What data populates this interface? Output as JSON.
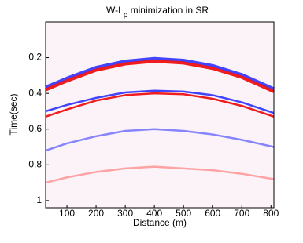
{
  "chart_data": {
    "type": "seismic",
    "title": [
      "W-L",
      "p",
      " minimization in SR"
    ],
    "x_label": "Distance (m)",
    "y_label": "Time(sec)",
    "xlim": [
      27,
      810
    ],
    "xticks": [
      100,
      200,
      300,
      400,
      500,
      600,
      700,
      800
    ],
    "ylim": [
      0,
      1.04
    ],
    "yticks": [
      0.2,
      0.4,
      0.6,
      0.8,
      1
    ],
    "y_reversed": true,
    "grid": false,
    "events": [
      {
        "color": "#3a3aff",
        "x": [
          27,
          100,
          200,
          300,
          400,
          500,
          600,
          700,
          810
        ],
        "values": [
          0.365,
          0.315,
          0.255,
          0.22,
          0.205,
          0.215,
          0.245,
          0.295,
          0.375
        ]
      },
      {
        "color": "#ee1111",
        "x": [
          27,
          100,
          200,
          300,
          400,
          500,
          600,
          700,
          810
        ],
        "values": [
          0.38,
          0.33,
          0.27,
          0.235,
          0.22,
          0.23,
          0.26,
          0.31,
          0.39
        ]
      },
      {
        "color": "#3a3aff",
        "x": [
          27,
          100,
          200,
          300,
          400,
          500,
          600,
          700,
          810
        ],
        "values": [
          0.5,
          0.465,
          0.425,
          0.395,
          0.385,
          0.39,
          0.41,
          0.45,
          0.51
        ]
      },
      {
        "color": "#ee1111",
        "x": [
          27,
          100,
          200,
          300,
          400,
          500,
          600,
          700,
          810
        ],
        "values": [
          0.53,
          0.49,
          0.44,
          0.41,
          0.4,
          0.405,
          0.43,
          0.47,
          0.53
        ]
      },
      {
        "color": "#5555ff",
        "x": [
          27,
          100,
          200,
          300,
          400,
          500,
          600,
          700,
          810
        ],
        "values": [
          0.72,
          0.68,
          0.64,
          0.61,
          0.6,
          0.61,
          0.63,
          0.66,
          0.7
        ]
      },
      {
        "color": "#ff8080",
        "x": [
          27,
          100,
          200,
          300,
          400,
          500,
          600,
          700,
          810
        ],
        "values": [
          0.9,
          0.87,
          0.84,
          0.82,
          0.81,
          0.82,
          0.83,
          0.85,
          0.88
        ]
      }
    ]
  }
}
